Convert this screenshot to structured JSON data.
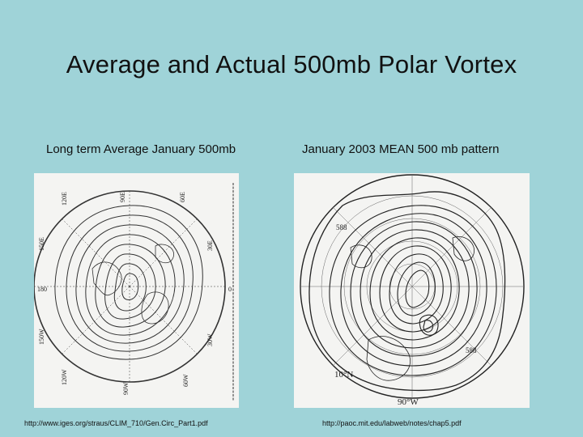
{
  "slide": {
    "title": "Average and Actual 500mb Polar Vortex"
  },
  "left_panel": {
    "caption": "Long term Average January 500mb",
    "source_url": "http://www.iges.org/straus/CLIM_710/Gen.Circ_Part1.pdf",
    "map_labels": {
      "lon_120e": "120E",
      "lon_90e": "90E",
      "lon_60e": "60E",
      "lon_150e": "150E",
      "lon_30e": "30E",
      "lon_180": "180",
      "lon_0": "0",
      "lon_150w": "150W",
      "lon_30w": "30W",
      "lon_120w": "120W",
      "lon_60w": "60W",
      "lon_90w": "90W"
    }
  },
  "right_panel": {
    "caption": "January 2003 MEAN 500 mb pattern",
    "source_url": "http://paoc.mit.edu/labweb/notes/chap5.pdf",
    "map_labels": {
      "contour_588_top": "588",
      "contour_588_bottom": "588",
      "lat_10n": "10°N",
      "lon_90w": "90°W"
    }
  }
}
